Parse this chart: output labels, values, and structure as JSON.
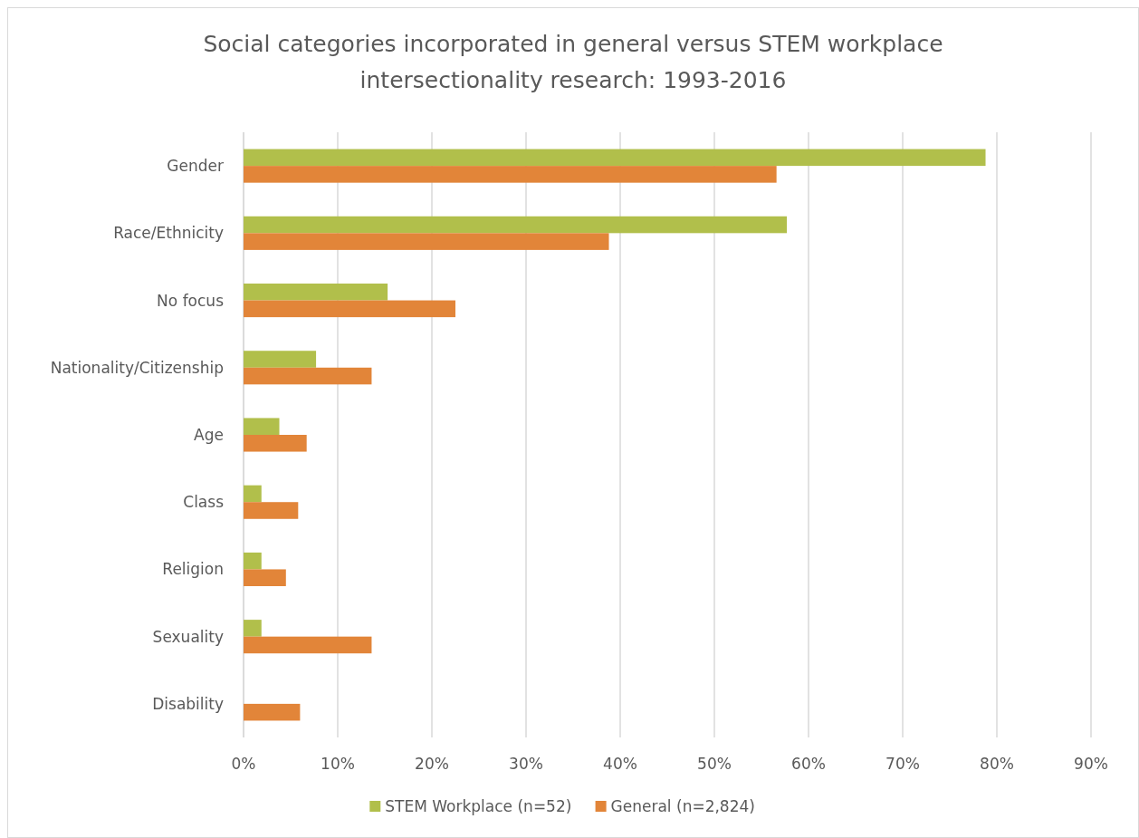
{
  "chart_data": {
    "type": "bar",
    "orientation": "horizontal",
    "title": "Social categories incorporated in general versus STEM workplace intersectionality research: 1993-2016",
    "categories": [
      "Gender",
      "Race/Ethnicity",
      "No focus",
      "Nationality/Citizenship",
      "Age",
      "Class",
      "Religion",
      "Sexuality",
      "Disability"
    ],
    "series": [
      {
        "name": "STEM Workplace (n=52)",
        "color": "#b1bf4b",
        "values": [
          78.8,
          57.7,
          15.3,
          7.7,
          3.8,
          1.9,
          1.9,
          1.9,
          0
        ]
      },
      {
        "name": "General (n=2,824)",
        "color": "#e28539",
        "values": [
          56.6,
          38.8,
          22.5,
          13.6,
          6.7,
          5.8,
          4.5,
          13.6,
          6.0
        ]
      }
    ],
    "xlim": [
      0,
      90
    ],
    "xticks": [
      {
        "value": 0,
        "label": "0%"
      },
      {
        "value": 10,
        "label": "10%"
      },
      {
        "value": 20,
        "label": "20%"
      },
      {
        "value": 30,
        "label": "30%"
      },
      {
        "value": 40,
        "label": "40%"
      },
      {
        "value": 50,
        "label": "50%"
      },
      {
        "value": 60,
        "label": "60%"
      },
      {
        "value": 70,
        "label": "70%"
      },
      {
        "value": 80,
        "label": "80%"
      },
      {
        "value": 90,
        "label": "90%"
      }
    ],
    "grid": "x",
    "legend": "bottom"
  }
}
